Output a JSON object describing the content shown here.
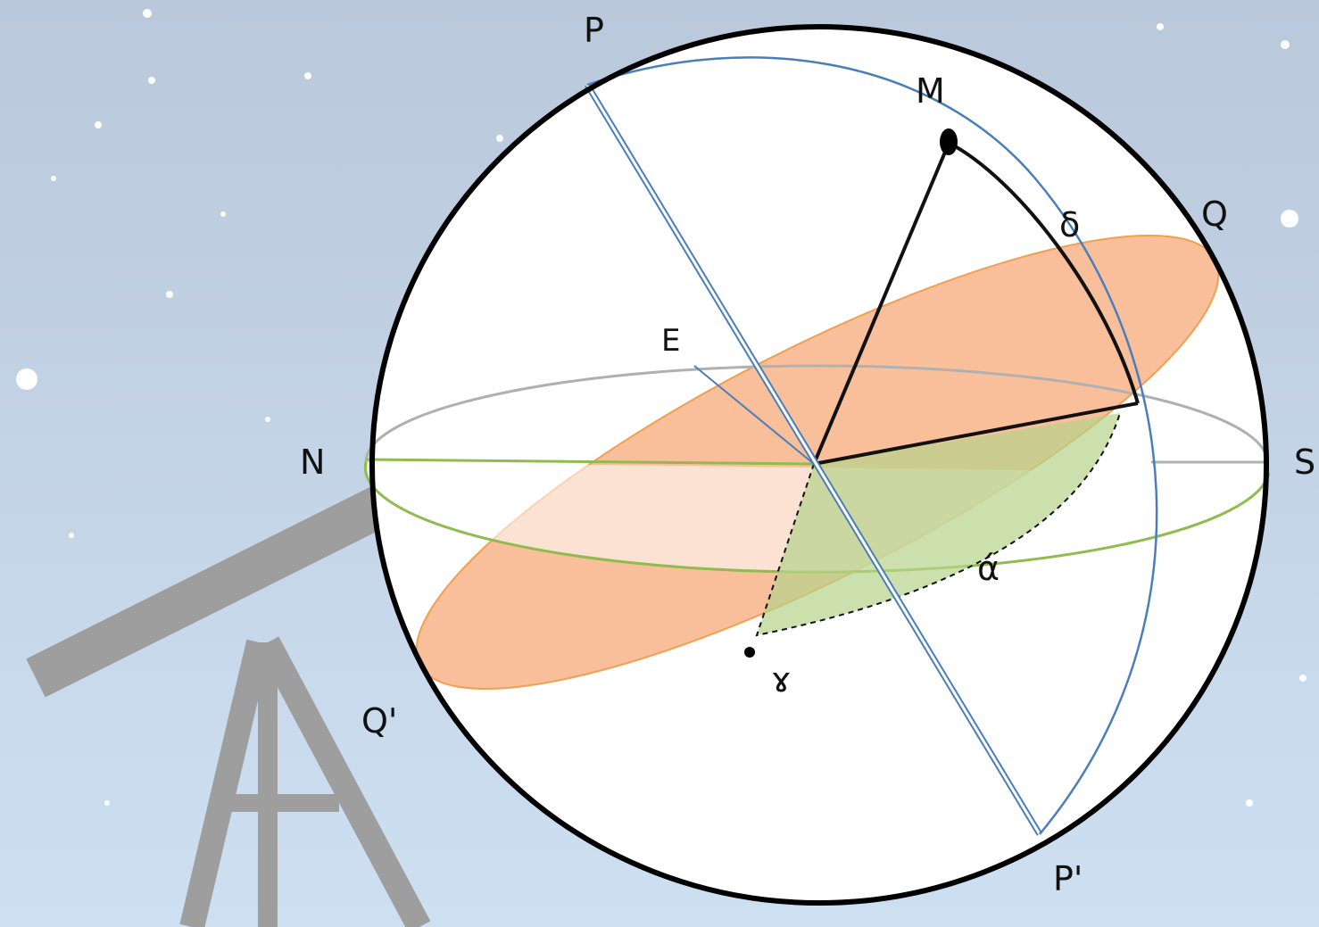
{
  "labels": [
    "P",
    "M",
    "δ",
    "Q",
    "E",
    "N",
    "S",
    "ά",
    "ɤ",
    "Q'",
    "P'"
  ]
}
